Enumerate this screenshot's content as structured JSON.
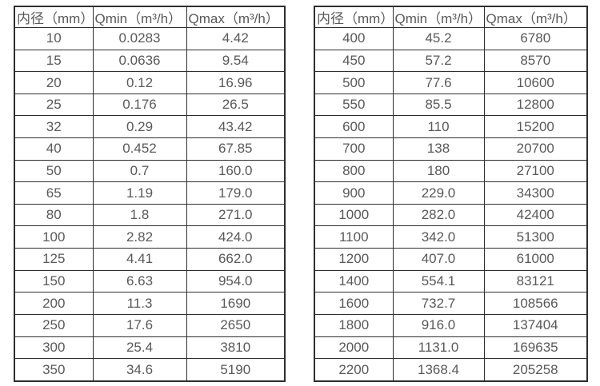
{
  "colors": {
    "background": "#ffffff",
    "table_border": "#2e2e2e",
    "table_text": "#595959"
  },
  "tables": [
    {
      "headers": [
        "内径（mm）",
        "Qmin（m³/h）",
        "Qmax（m³/h）"
      ],
      "rows": [
        [
          "10",
          "0.0283",
          "4.42"
        ],
        [
          "15",
          "0.0636",
          "9.54"
        ],
        [
          "20",
          "0.12",
          "16.96"
        ],
        [
          "25",
          "0.176",
          "26.5"
        ],
        [
          "32",
          "0.29",
          "43.42"
        ],
        [
          "40",
          "0.452",
          "67.85"
        ],
        [
          "50",
          "0.7",
          "160.0"
        ],
        [
          "65",
          "1.19",
          "179.0"
        ],
        [
          "80",
          "1.8",
          "271.0"
        ],
        [
          "100",
          "2.82",
          "424.0"
        ],
        [
          "125",
          "4.41",
          "662.0"
        ],
        [
          "150",
          "6.63",
          "954.0"
        ],
        [
          "200",
          "11.3",
          "1690"
        ],
        [
          "250",
          "17.6",
          "2650"
        ],
        [
          "300",
          "25.4",
          "3810"
        ],
        [
          "350",
          "34.6",
          "5190"
        ]
      ]
    },
    {
      "headers": [
        "内径（mm）",
        "Qmin（m³/h）",
        "Qmax（m³/h）"
      ],
      "rows": [
        [
          "400",
          "45.2",
          "6780"
        ],
        [
          "450",
          "57.2",
          "8570"
        ],
        [
          "500",
          "77.6",
          "10600"
        ],
        [
          "550",
          "85.5",
          "12800"
        ],
        [
          "600",
          "110",
          "15200"
        ],
        [
          "700",
          "138",
          "20700"
        ],
        [
          "800",
          "180",
          "27100"
        ],
        [
          "900",
          "229.0",
          "34300"
        ],
        [
          "1000",
          "282.0",
          "42400"
        ],
        [
          "1100",
          "342.0",
          "51300"
        ],
        [
          "1200",
          "407.0",
          "61000"
        ],
        [
          "1400",
          "554.1",
          "83121"
        ],
        [
          "1600",
          "732.7",
          "108566"
        ],
        [
          "1800",
          "916.0",
          "137404"
        ],
        [
          "2000",
          "1131.0",
          "169635"
        ],
        [
          "2200",
          "1368.4",
          "205258"
        ]
      ]
    }
  ]
}
